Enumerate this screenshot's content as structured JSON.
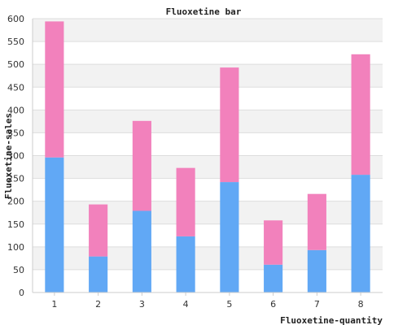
{
  "chart_data": {
    "type": "bar",
    "stacked": true,
    "title": "Fluoxetine bar",
    "xlabel": "Fluoxetine-quantity",
    "ylabel": "Fluoxetine-sales",
    "categories": [
      "1",
      "2",
      "3",
      "4",
      "5",
      "6",
      "7",
      "8"
    ],
    "series": [
      {
        "values": [
          296,
          79,
          179,
          123,
          242,
          61,
          93,
          258
        ],
        "color": "#61a8f5"
      },
      {
        "values": [
          298,
          114,
          197,
          150,
          251,
          97,
          123,
          264
        ],
        "color": "#f281bc"
      }
    ],
    "ylim": [
      0,
      600
    ],
    "yticks": [
      0,
      50,
      100,
      150,
      200,
      250,
      300,
      350,
      400,
      450,
      500,
      550,
      600
    ],
    "grid": true,
    "band_colors": [
      "#ffffff",
      "#f2f2f2"
    ],
    "grid_color": "#dddddd",
    "axis_color": "#cccccc"
  }
}
